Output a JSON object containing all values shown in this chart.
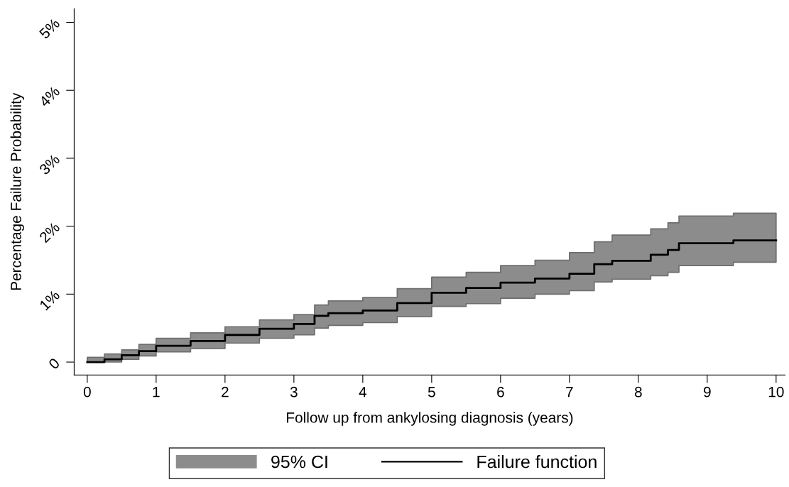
{
  "chart_data": {
    "type": "step",
    "xlabel": "Follow up from ankylosing diagnosis (years)",
    "ylabel": "Percentage Failure Probability",
    "xlim": [
      -0.19,
      10.13
    ],
    "xticks": [
      0,
      1,
      2,
      3,
      4,
      5,
      6,
      7,
      8,
      9,
      10
    ],
    "ylim": [
      -0.19,
      5.2
    ],
    "yticks": [
      {
        "value": 0,
        "label": "0"
      },
      {
        "value": 1,
        "label": "1%"
      },
      {
        "value": 2,
        "label": "2%"
      },
      {
        "value": 3,
        "label": "3%"
      },
      {
        "value": 4,
        "label": "4%"
      },
      {
        "value": 5,
        "label": "5%"
      }
    ],
    "grid": false,
    "legend": "bottom",
    "annotations": [
      "95% CI"
    ],
    "series": [
      {
        "name": "Failure function",
        "color": "#000000",
        "x": [
          0,
          0.25,
          0.5,
          0.75,
          1.0,
          1.5,
          2.0,
          2.5,
          3.0,
          3.3,
          3.5,
          4.0,
          4.5,
          5.0,
          5.5,
          6.0,
          6.5,
          7.0,
          7.36,
          7.62,
          8.18,
          8.43,
          8.59,
          9.38,
          10
        ],
        "values": [
          0,
          0.04,
          0.1,
          0.16,
          0.24,
          0.31,
          0.4,
          0.49,
          0.56,
          0.68,
          0.72,
          0.76,
          0.87,
          1.02,
          1.09,
          1.17,
          1.23,
          1.3,
          1.44,
          1.49,
          1.58,
          1.65,
          1.75,
          1.79,
          1.79
        ],
        "lower": [
          0,
          0.0,
          0.04,
          0.09,
          0.15,
          0.2,
          0.28,
          0.35,
          0.4,
          0.5,
          0.54,
          0.58,
          0.67,
          0.82,
          0.86,
          0.94,
          1.0,
          1.05,
          1.18,
          1.22,
          1.27,
          1.32,
          1.42,
          1.47,
          1.47
        ],
        "upper": [
          0.07,
          0.12,
          0.18,
          0.26,
          0.35,
          0.43,
          0.52,
          0.62,
          0.7,
          0.84,
          0.9,
          0.95,
          1.08,
          1.25,
          1.32,
          1.42,
          1.5,
          1.61,
          1.77,
          1.87,
          1.96,
          2.05,
          2.15,
          2.19,
          2.19
        ]
      }
    ]
  }
}
